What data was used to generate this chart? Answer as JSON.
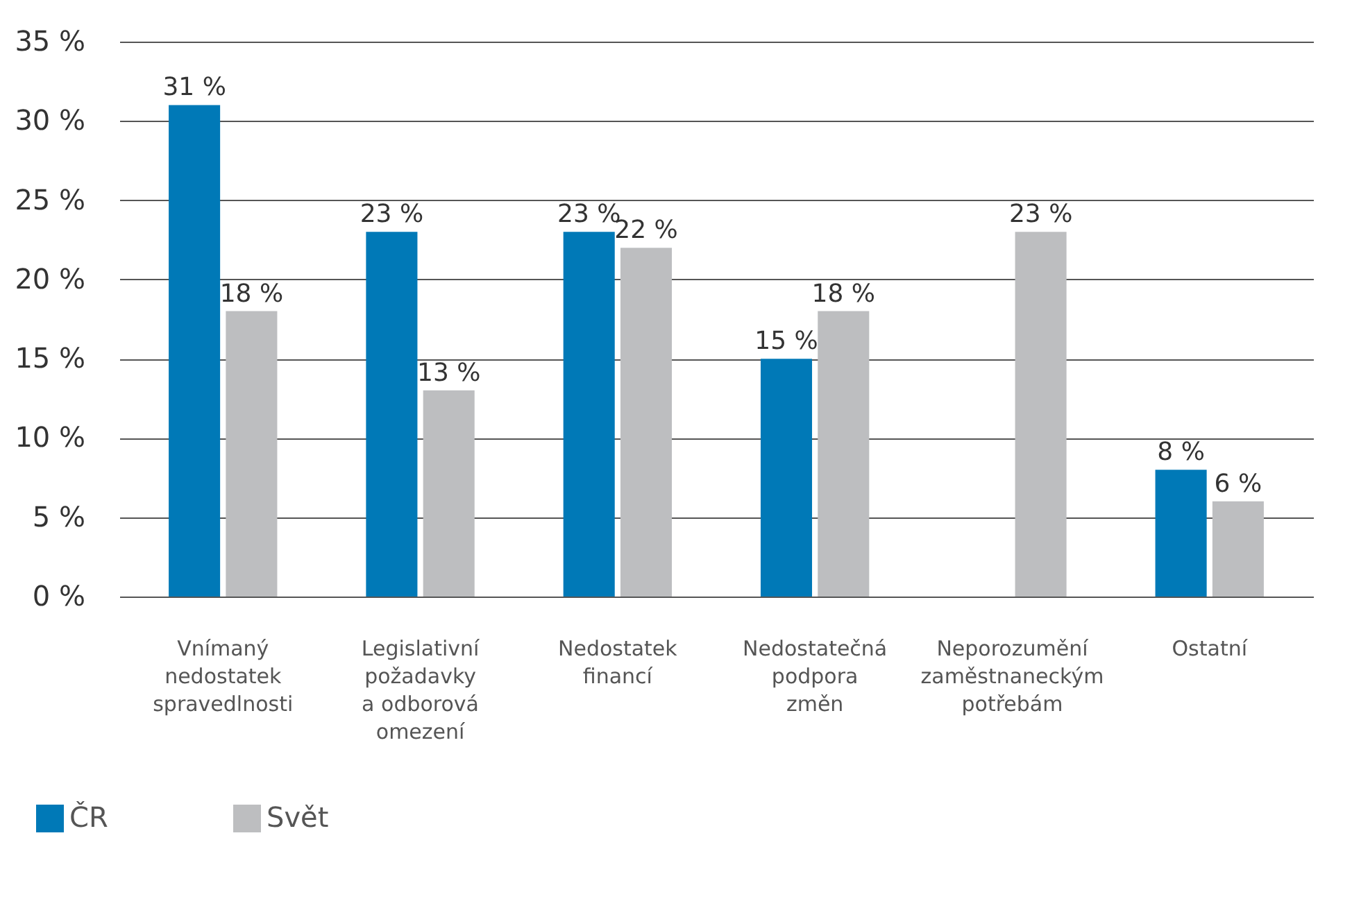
{
  "chart_data": {
    "type": "bar",
    "categories": [
      "Vnímaný nedostatek spravedlnosti",
      "Legislativní požadavky a odborová omezení",
      "Nedostatek financí",
      "Nedostatečná podpora změn",
      "Neporozumění zaměstnaneckým potřebám",
      "Ostatní"
    ],
    "series": [
      {
        "name": "ČR",
        "color": "#0079b7",
        "values": [
          31,
          23,
          23,
          15,
          null,
          8
        ],
        "value_labels": [
          "31 %",
          "23 %",
          "23 %",
          "15 %",
          null,
          "8 %"
        ]
      },
      {
        "name": "Svět",
        "color": "#bdbec0",
        "values": [
          18,
          13,
          22,
          18,
          23,
          6
        ],
        "value_labels": [
          "18 %",
          "13 %",
          "22 %",
          "18 %",
          "23 %",
          "6 %"
        ]
      }
    ],
    "ylim": [
      0,
      35
    ],
    "yticks": [
      {
        "value": 0,
        "label": "0 %"
      },
      {
        "value": 5,
        "label": "5 %"
      },
      {
        "value": 10,
        "label": "10 %"
      },
      {
        "value": 15,
        "label": "15 %"
      },
      {
        "value": 20,
        "label": "20 %"
      },
      {
        "value": 25,
        "label": "25 %"
      },
      {
        "value": 30,
        "label": "30 %"
      },
      {
        "value": 35,
        "label": "35 %"
      }
    ],
    "grid": "y",
    "legend": "bottom left"
  }
}
